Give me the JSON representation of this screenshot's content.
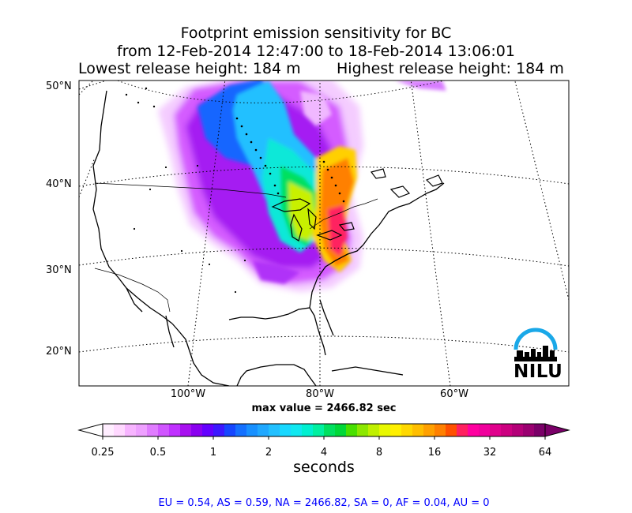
{
  "title": {
    "line1": "Footprint emission sensitivity for BC",
    "line2": "from 12-Feb-2014 12:47:00 to 18-Feb-2014 13:06:01",
    "line3": "Lowest release height: 184 m",
    "line4": "Highest release height: 184 m"
  },
  "map": {
    "lat_labels": [
      "50°N",
      "40°N",
      "30°N",
      "20°N"
    ],
    "lon_labels": [
      "100°W",
      "80°W",
      "60°W"
    ],
    "max_value": "max value = 2466.82 sec",
    "logo_text": "NILU"
  },
  "colorbar": {
    "ticks": [
      "0.25",
      "0.5",
      "1",
      "2",
      "4",
      "8",
      "16",
      "32",
      "64"
    ],
    "label": "seconds",
    "colors": [
      "#ffeeff",
      "#ffd8ff",
      "#f7b4ff",
      "#eea0ff",
      "#e07cff",
      "#d055ff",
      "#c030ff",
      "#a810f0",
      "#8a00f0",
      "#6400ff",
      "#3c18ff",
      "#1646ff",
      "#1470ff",
      "#1890ff",
      "#20a8ff",
      "#22c0ff",
      "#18d8ff",
      "#10e8f0",
      "#00f0d0",
      "#00f0a0",
      "#00e060",
      "#00d838",
      "#48e000",
      "#8ce800",
      "#c0f000",
      "#e8f800",
      "#fff000",
      "#ffd800",
      "#ffbe00",
      "#ffa000",
      "#ff8000",
      "#ff5000",
      "#ff2060",
      "#ff00a0",
      "#f0009c",
      "#e0008c",
      "#cc0080",
      "#b40078",
      "#9a0070",
      "#7a0068"
    ]
  },
  "regional_text": "EU = 0.54,  AS = 0.59,  NA = 2466.82,  SA = 0,  AF = 0.04,  AU = 0"
}
